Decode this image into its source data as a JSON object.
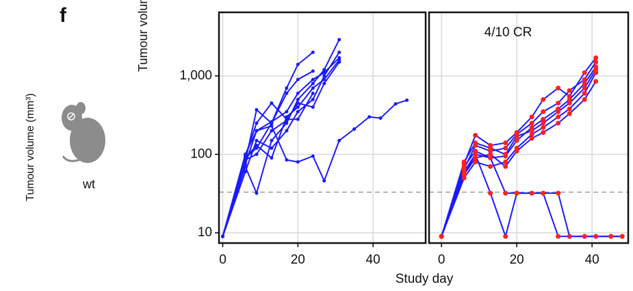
{
  "panel_label": "f",
  "mouse_label": "wt",
  "x_label": "Study day",
  "y_label": "Tumour volume (mm³)",
  "chart_data": [
    {
      "type": "line",
      "log_y": true,
      "grid": true,
      "xlim": [
        -1,
        54
      ],
      "ylim": [
        7.4,
        6460
      ],
      "xticks": [
        0,
        20,
        40
      ],
      "yticks": [
        10,
        100,
        {
          "value": 1000,
          "label": "1,000"
        }
      ],
      "threshold": 33,
      "color": "#1a1aff",
      "marker_color": "#1a1aff",
      "series": [
        {
          "x": [
            0,
            6,
            9,
            13,
            17,
            20,
            24
          ],
          "values": [
            9,
            90,
            120,
            250,
            700,
            1400,
            2000
          ]
        },
        {
          "x": [
            0,
            6,
            9,
            13,
            17,
            20,
            24
          ],
          "values": [
            9,
            80,
            370,
            250,
            600,
            900,
            1150
          ]
        },
        {
          "x": [
            0,
            6,
            9,
            13,
            17,
            20,
            24,
            27,
            31
          ],
          "values": [
            9,
            70,
            32,
            150,
            250,
            500,
            800,
            1200,
            2900
          ]
        },
        {
          "x": [
            0,
            6,
            9,
            13,
            17,
            20,
            24,
            27,
            31,
            35,
            39,
            42,
            46,
            49
          ],
          "values": [
            9,
            100,
            200,
            230,
            85,
            80,
            95,
            46,
            150,
            210,
            300,
            290,
            440,
            490
          ]
        },
        {
          "x": [
            0,
            6,
            9,
            13,
            17,
            20,
            24,
            27,
            31
          ],
          "values": [
            9,
            60,
            150,
            120,
            200,
            350,
            500,
            1000,
            2000
          ]
        },
        {
          "x": [
            0,
            6,
            9,
            13,
            17,
            20,
            24,
            27,
            31
          ],
          "values": [
            9,
            90,
            130,
            90,
            300,
            400,
            700,
            900,
            1600
          ]
        },
        {
          "x": [
            0,
            6,
            9,
            13,
            17,
            20,
            24,
            27,
            31
          ],
          "values": [
            9,
            75,
            200,
            260,
            350,
            600,
            900,
            1100,
            1700
          ]
        },
        {
          "x": [
            0,
            6,
            9,
            13,
            17,
            20,
            24,
            27,
            31
          ],
          "values": [
            9,
            85,
            100,
            200,
            270,
            450,
            400,
            800,
            1500
          ]
        },
        {
          "x": [
            0,
            6,
            9,
            13,
            17,
            20,
            24
          ],
          "values": [
            9,
            95,
            250,
            450,
            280,
            280,
            600
          ]
        }
      ]
    },
    {
      "type": "line",
      "log_y": true,
      "grid": true,
      "xlim": [
        -3.3,
        49.6
      ],
      "ylim": [
        7.4,
        6460
      ],
      "xticks": [
        0,
        20,
        40
      ],
      "yticks": [
        10,
        100,
        1000
      ],
      "threshold": 33,
      "annotation": "4/10 CR",
      "color": "#1a1aff",
      "marker_color": "#ff2020",
      "series": [
        {
          "x": [
            0,
            6,
            9,
            13,
            17,
            20,
            24,
            27,
            31,
            34,
            38,
            41,
            45,
            48
          ],
          "values": [
            9,
            55,
            100,
            32,
            9,
            32,
            32,
            32,
            9,
            9,
            9,
            9,
            9,
            9
          ]
        },
        {
          "x": [
            0,
            6,
            9,
            13,
            17,
            20,
            24,
            27,
            31,
            34,
            38,
            41,
            45,
            48
          ],
          "values": [
            9,
            70,
            110,
            90,
            32,
            32,
            32,
            32,
            32,
            9,
            9,
            9,
            9,
            9
          ]
        },
        {
          "x": [
            0,
            6,
            9,
            13,
            17,
            20,
            24,
            27,
            31,
            34,
            38,
            41
          ],
          "values": [
            9,
            75,
            175,
            130,
            140,
            190,
            300,
            500,
            700,
            550,
            1100,
            1700
          ]
        },
        {
          "x": [
            0,
            6,
            9,
            13,
            17,
            20,
            24,
            27,
            31,
            34,
            38,
            41
          ],
          "values": [
            9,
            65,
            130,
            110,
            120,
            180,
            250,
            350,
            450,
            650,
            900,
            1500
          ]
        },
        {
          "x": [
            0,
            6,
            9,
            13,
            17,
            20,
            24,
            27,
            31,
            34,
            38,
            41
          ],
          "values": [
            9,
            60,
            100,
            90,
            95,
            150,
            220,
            280,
            380,
            500,
            800,
            1300
          ]
        },
        {
          "x": [
            0,
            6,
            9,
            13,
            17,
            20,
            24,
            27,
            31,
            34,
            38,
            41
          ],
          "values": [
            9,
            50,
            80,
            70,
            80,
            120,
            180,
            220,
            300,
            380,
            600,
            1100
          ]
        },
        {
          "x": [
            0,
            6,
            9,
            13,
            17,
            20,
            24,
            27,
            31,
            34,
            38,
            41
          ],
          "values": [
            9,
            80,
            140,
            120,
            100,
            170,
            200,
            250,
            350,
            450,
            700,
            1200
          ]
        },
        {
          "x": [
            0,
            6,
            9,
            13,
            17,
            20,
            24,
            27,
            31,
            34,
            38,
            41
          ],
          "values": [
            9,
            55,
            90,
            100,
            70,
            110,
            160,
            190,
            250,
            330,
            500,
            850
          ]
        }
      ]
    }
  ]
}
